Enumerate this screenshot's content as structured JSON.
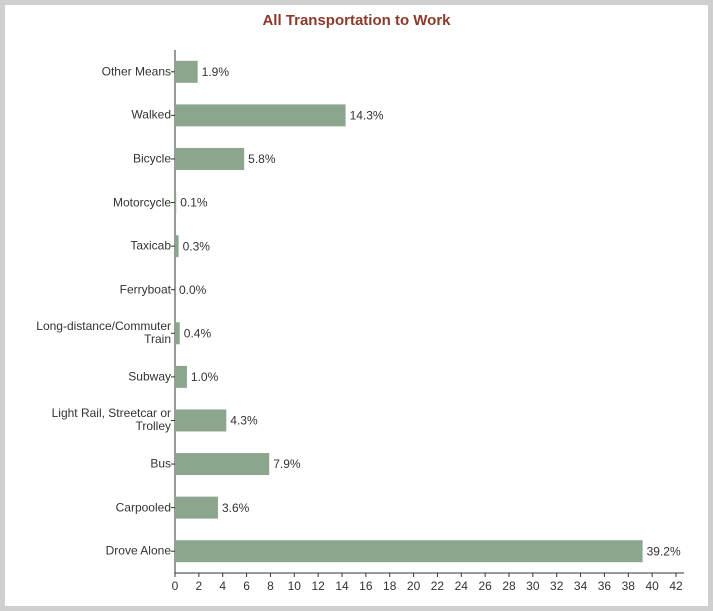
{
  "chart_data": {
    "type": "hbar",
    "title": "All Transportation to Work",
    "categories": [
      "Other Means",
      "Walked",
      "Bicycle",
      "Motorcycle",
      "Taxicab",
      "Ferryboat",
      "Long-distance/Commuter Train",
      "Subway",
      "Light Rail, Streetcar or Trolley",
      "Bus",
      "Carpooled",
      "Drove Alone"
    ],
    "values": [
      1.9,
      14.3,
      5.8,
      0.1,
      0.3,
      0.0,
      0.4,
      1.0,
      4.3,
      7.9,
      3.6,
      39.2
    ],
    "value_labels": [
      "1.9%",
      "14.3%",
      "5.8%",
      "0.1%",
      "0.3%",
      "0.0%",
      "0.4%",
      "1.0%",
      "4.3%",
      "7.9%",
      "3.6%",
      "39.2%"
    ],
    "color": "#8ba68c",
    "xlim": [
      0,
      42
    ],
    "xticks": [
      0,
      2,
      4,
      6,
      8,
      10,
      12,
      14,
      16,
      18,
      20,
      22,
      24,
      26,
      28,
      30,
      32,
      34,
      36,
      38,
      40,
      42
    ]
  }
}
